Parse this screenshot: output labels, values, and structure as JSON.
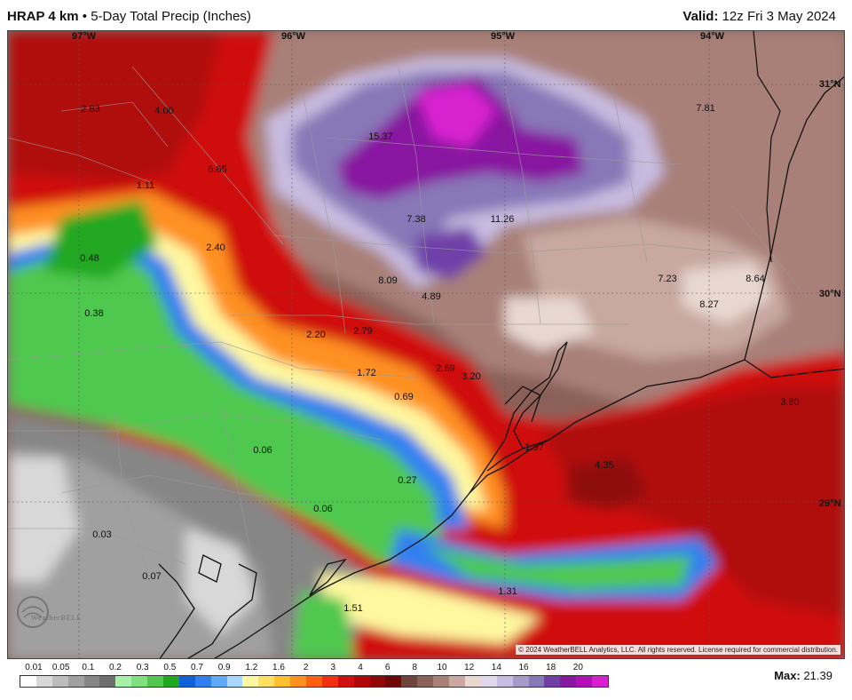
{
  "header": {
    "model": "HRAP 4 km",
    "separator": "•",
    "product": "5-Day Total Precip (Inches)",
    "valid_label": "Valid:",
    "valid_time": "12z Fri 3 May 2024"
  },
  "map": {
    "longitude_labels": [
      "97°W",
      "96°W",
      "95°W",
      "94°W"
    ],
    "latitude_labels": [
      "31°N",
      "30°N",
      "29°N"
    ],
    "point_values": [
      "2.83",
      "4.00",
      "6.65",
      "1.11",
      "0.48",
      "2.40",
      "0.38",
      "15.37",
      "7.38",
      "11.26",
      "7.81",
      "8.09",
      "4.89",
      "7.23",
      "8.64",
      "8.27",
      "2.20",
      "2.79",
      "1.72",
      "2.69",
      "3.20",
      "0.69",
      "3.60",
      "0.06",
      "1.97",
      "4.35",
      "0.27",
      "0.06",
      "0.03",
      "0.07",
      "1.31",
      "1.51"
    ],
    "copyright": "© 2024 WeatherBELL Analytics, LLC. All rights reserved. License required for commercial distribution.",
    "logo_text": "WeatherBELL"
  },
  "legend": {
    "ticks": [
      "0.01",
      "0.05",
      "0.1",
      "0.2",
      "0.3",
      "0.5",
      "0.7",
      "0.9",
      "1.2",
      "1.6",
      "2",
      "3",
      "4",
      "6",
      "8",
      "10",
      "12",
      "14",
      "16",
      "18",
      "20"
    ],
    "colors": [
      "#ffffff",
      "#d8d8d8",
      "#bcbcbc",
      "#a0a0a0",
      "#868686",
      "#6e6e6e",
      "#a8f0a8",
      "#7ee07e",
      "#50c850",
      "#20a820",
      "#1060d8",
      "#3080f0",
      "#60a8f8",
      "#a8d8ff",
      "#fff8a0",
      "#ffe060",
      "#ffc030",
      "#ff9020",
      "#ff6010",
      "#f03010",
      "#d01010",
      "#b00808",
      "#900808",
      "#700808",
      "#6e4438",
      "#8a6058",
      "#a88078",
      "#c8a8a0",
      "#e8d8d0",
      "#e0d8ec",
      "#c8bce0",
      "#a898cc",
      "#8878b8",
      "#7040a8",
      "#8818a0",
      "#b010b8",
      "#d820d0"
    ]
  },
  "max": {
    "label": "Max:",
    "value": "21.39"
  }
}
